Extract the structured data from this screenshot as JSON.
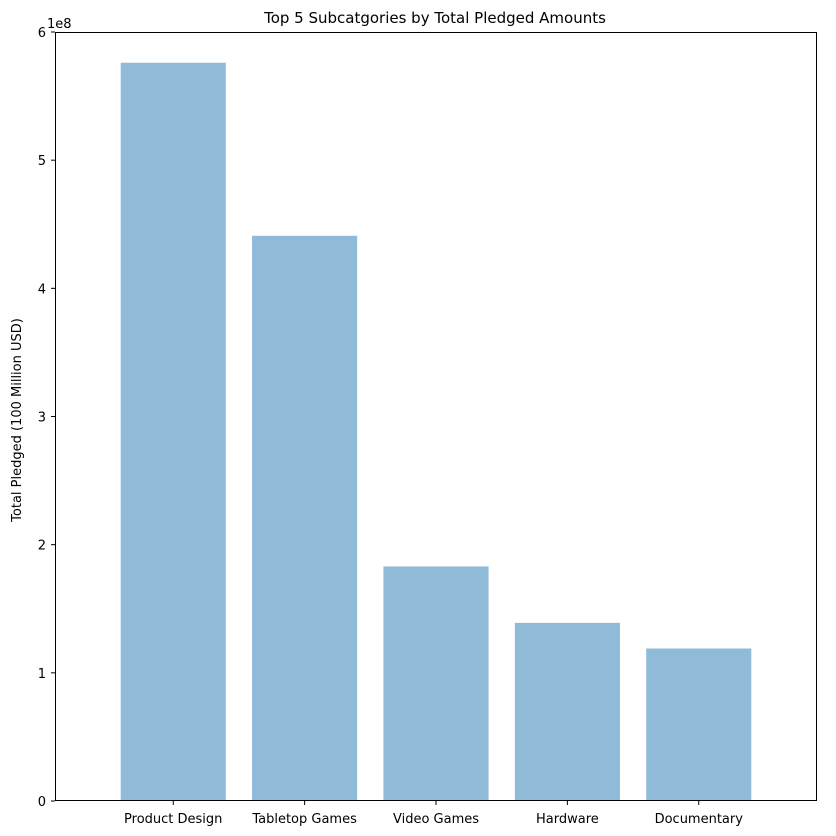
{
  "chart_data": {
    "type": "bar",
    "title": "Top 5 Subcatgories by Total Pledged Amounts",
    "xlabel": "",
    "ylabel": "Total Pledged (100 Million USD)",
    "offset_label": "1e8",
    "categories": [
      "Product Design",
      "Tabletop Games",
      "Video Games",
      "Hardware",
      "Documentary"
    ],
    "values": [
      576000000,
      441000000,
      183000000,
      139000000,
      119000000
    ],
    "ylim": [
      0,
      600000000
    ],
    "yticks": [
      0,
      100000000,
      200000000,
      300000000,
      400000000,
      500000000,
      600000000
    ],
    "ytick_labels": [
      "0",
      "1",
      "2",
      "3",
      "4",
      "5",
      "6"
    ],
    "bar_color": "#8fbad8",
    "grid": false,
    "legend": "none"
  }
}
